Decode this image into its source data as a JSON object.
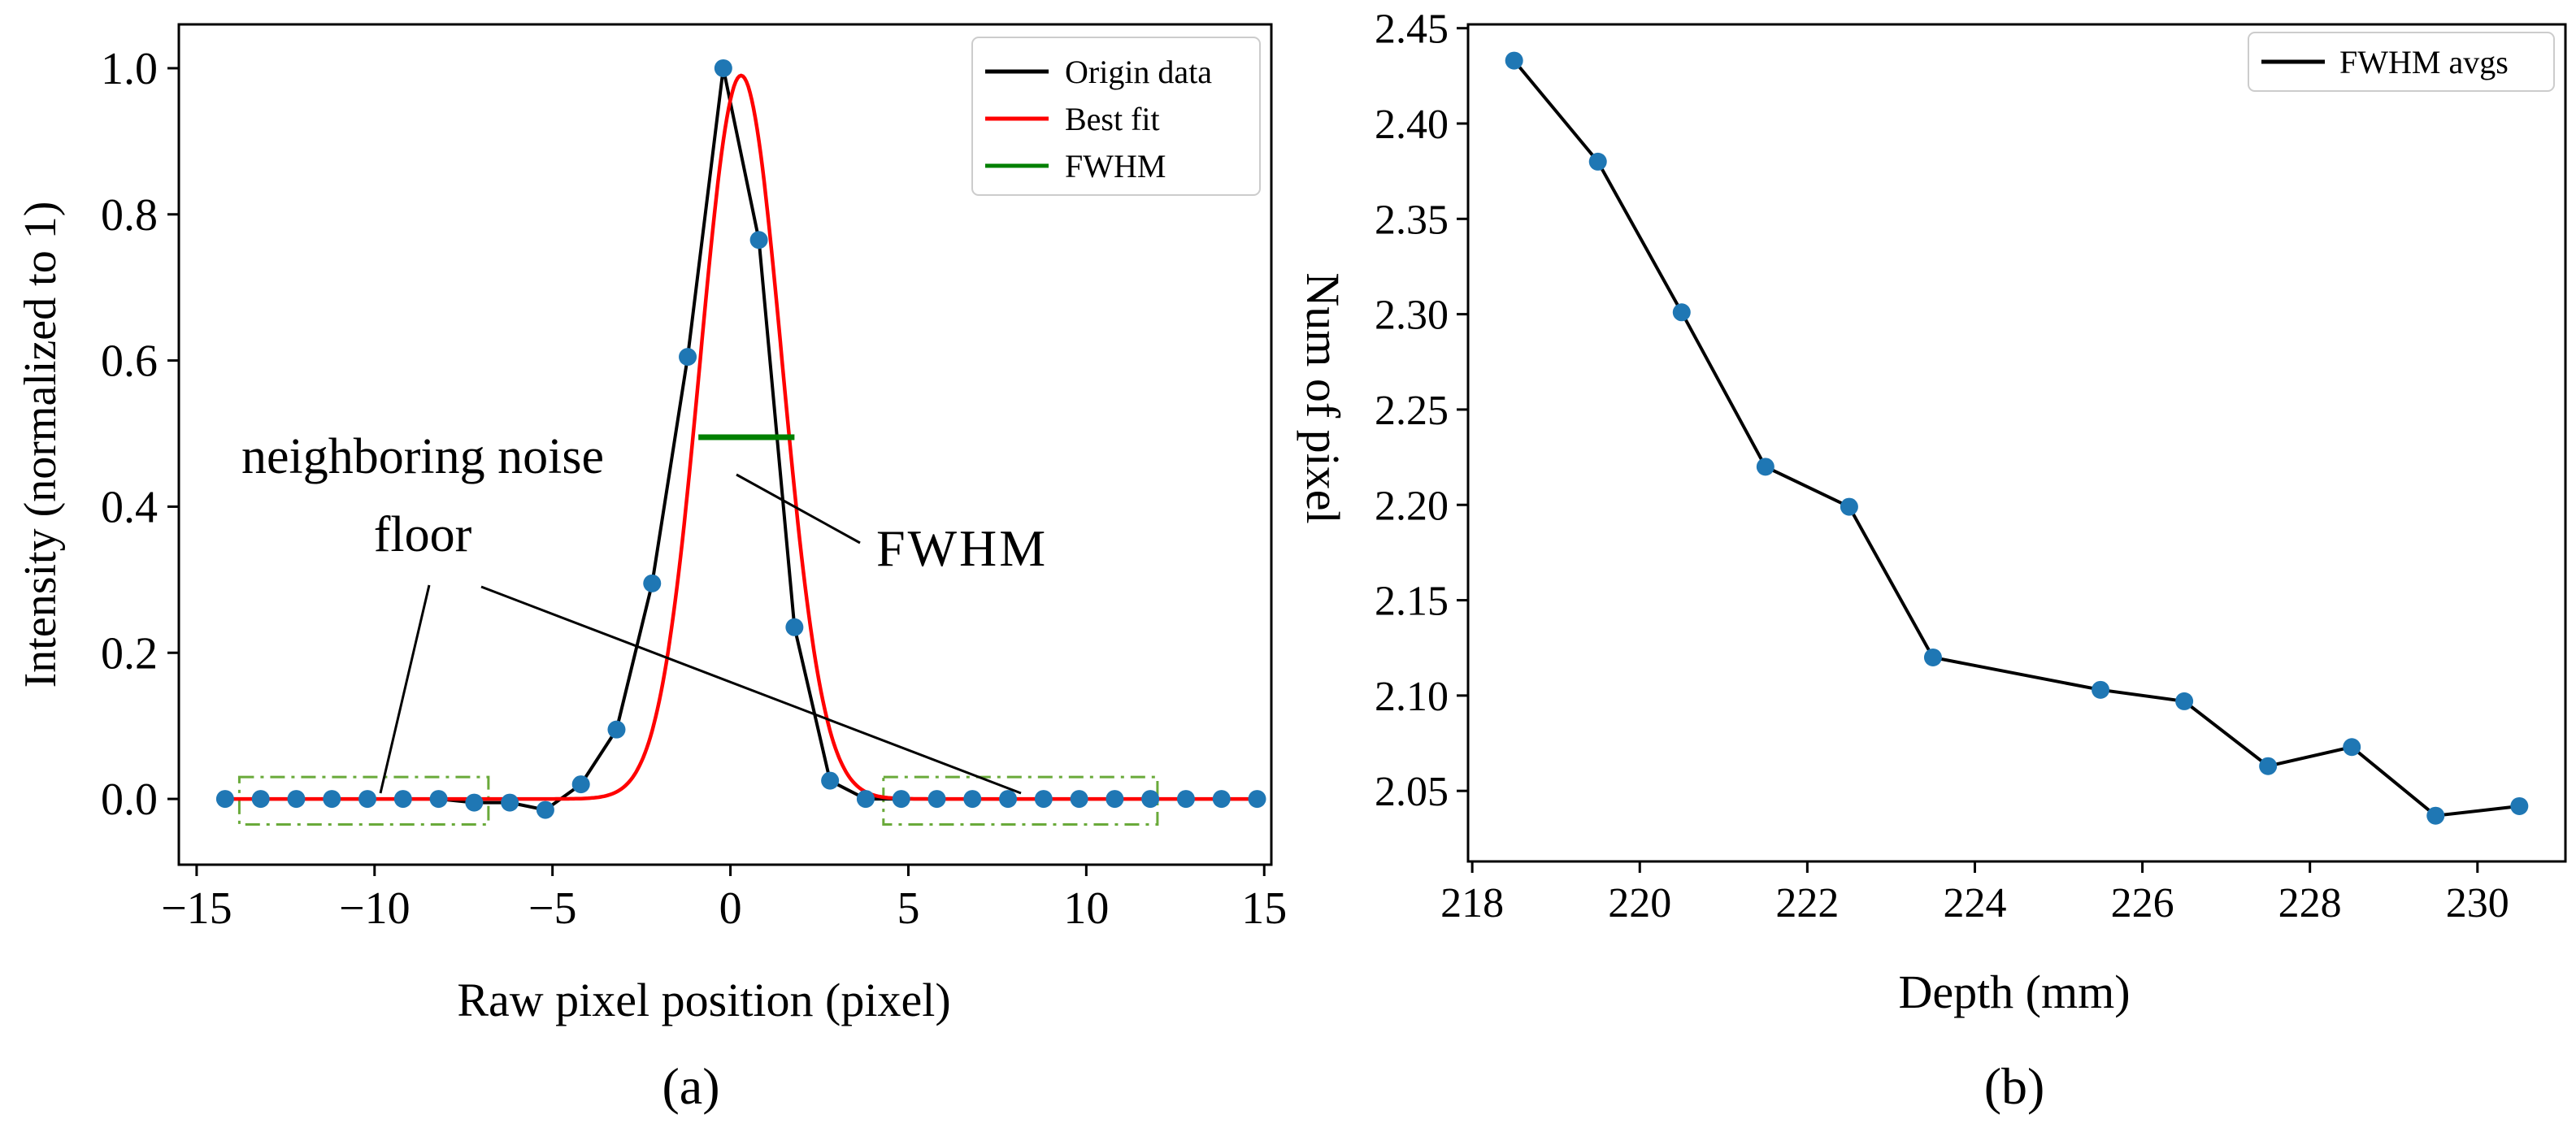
{
  "colors": {
    "marker": "#1f77b4",
    "origin": "#000000",
    "fit": "#ff0000",
    "fwhm": "#008000",
    "noise_box": "#6aaa3a"
  },
  "chart_data": [
    {
      "id": "a",
      "type": "line",
      "caption": "(a)",
      "xlabel": "Raw pixel position (pixel)",
      "ylabel": "Intensity (normalized to 1)",
      "xlim": [
        -15.5,
        15.2
      ],
      "ylim": [
        -0.09,
        1.06
      ],
      "xticks": [
        -15,
        -10,
        -5,
        0,
        5,
        10,
        15
      ],
      "xtick_labels": [
        "−15",
        "−10",
        "−5",
        "0",
        "5",
        "10",
        "15"
      ],
      "yticks": [
        0.0,
        0.2,
        0.4,
        0.6,
        0.8,
        1.0
      ],
      "ytick_labels": [
        "0.0",
        "0.2",
        "0.4",
        "0.6",
        "0.8",
        "1.0"
      ],
      "legend": [
        "Origin data",
        "Best fit",
        "FWHM"
      ],
      "legend_position": "top-right",
      "series": [
        {
          "name": "Origin data",
          "x": [
            -14.2,
            -13.2,
            -12.2,
            -11.2,
            -10.2,
            -9.2,
            -8.2,
            -7.2,
            -6.2,
            -5.2,
            -4.2,
            -3.2,
            -2.2,
            -1.2,
            -0.2,
            0.8,
            1.8,
            2.8,
            3.8,
            4.8,
            5.8,
            6.8,
            7.8,
            8.8,
            9.8,
            10.8,
            11.8,
            12.8,
            13.8,
            14.8
          ],
          "y": [
            0.0,
            0.0,
            0.0,
            0.0,
            0.0,
            0.0,
            0.0,
            -0.005,
            -0.005,
            -0.015,
            0.02,
            0.095,
            0.295,
            0.605,
            1.0,
            0.765,
            0.235,
            0.025,
            0.0,
            0.0,
            0.0,
            0.0,
            0.0,
            0.0,
            0.0,
            0.0,
            0.0,
            0.0,
            0.0,
            0.0
          ]
        },
        {
          "name": "Best fit",
          "type": "gaussian",
          "amplitude": 0.99,
          "center": 0.3,
          "sigma": 1.15
        },
        {
          "name": "FWHM",
          "x": [
            -0.9,
            1.8
          ],
          "y": [
            0.495,
            0.495
          ]
        }
      ],
      "annotations": {
        "noise_label": [
          "neighboring noise",
          "floor"
        ],
        "fwhm_label": "FWHM",
        "noise_regions": [
          [
            -13.8,
            -6.8
          ],
          [
            4.3,
            12.0
          ]
        ],
        "noise_region_y": [
          -0.035,
          0.03
        ]
      }
    },
    {
      "id": "b",
      "type": "line",
      "caption": "(b)",
      "xlabel": "Depth (mm)",
      "ylabel": "Num of pixel",
      "xlim": [
        217.95,
        231.05
      ],
      "ylim": [
        2.013,
        2.452
      ],
      "xticks": [
        218,
        220,
        222,
        224,
        226,
        228,
        230
      ],
      "xtick_labels": [
        "218",
        "220",
        "222",
        "224",
        "226",
        "228",
        "230"
      ],
      "yticks": [
        2.05,
        2.1,
        2.15,
        2.2,
        2.25,
        2.3,
        2.35,
        2.4,
        2.45
      ],
      "ytick_labels": [
        "2.05",
        "2.10",
        "2.15",
        "2.20",
        "2.25",
        "2.30",
        "2.35",
        "2.40",
        "2.45"
      ],
      "legend": [
        "FWHM avgs"
      ],
      "legend_position": "top-right",
      "series": [
        {
          "name": "FWHM avgs",
          "x": [
            218.5,
            219.5,
            220.5,
            221.5,
            222.5,
            223.5,
            225.5,
            226.5,
            227.5,
            228.5,
            229.5,
            230.5
          ],
          "y": [
            2.433,
            2.38,
            2.301,
            2.22,
            2.199,
            2.12,
            2.103,
            2.097,
            2.063,
            2.073,
            2.037,
            2.042
          ]
        }
      ]
    }
  ]
}
